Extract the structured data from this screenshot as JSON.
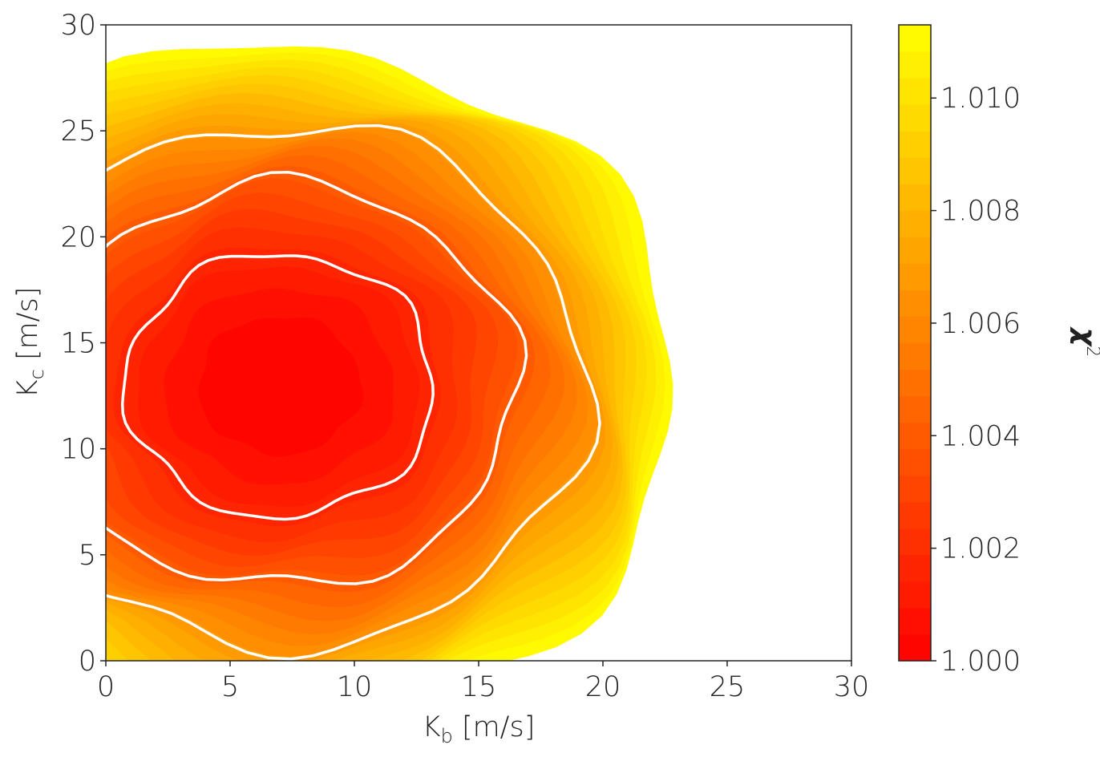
{
  "chart_data": {
    "type": "heatmap",
    "subtype": "filled-contour",
    "title": "",
    "xlabel": "K",
    "xlabel_sub": "b",
    "xlabel_unit": " [m/s]",
    "ylabel": "K",
    "ylabel_sub": "c",
    "ylabel_unit": " [m/s]",
    "xlim": [
      0,
      30
    ],
    "ylim": [
      0,
      30
    ],
    "xticks": [
      0,
      5,
      10,
      15,
      20,
      25,
      30
    ],
    "yticks": [
      0,
      5,
      10,
      15,
      20,
      25,
      30
    ],
    "minimum": {
      "x": 7,
      "y": 13,
      "value": 1.0
    },
    "colorbar": {
      "label": "χ",
      "label_sup": "2",
      "min": 1.0,
      "max": 1.0113,
      "ticks": [
        "1.000",
        "1.002",
        "1.004",
        "1.006",
        "1.008",
        "1.010"
      ],
      "tick_values": [
        1.0,
        1.002,
        1.004,
        1.006,
        1.008,
        1.01
      ],
      "colormap": "autumn",
      "color_low": "#ff0000",
      "color_high": "#ffff00"
    },
    "contour_levels": [
      1.0017,
      1.004,
      1.0067
    ],
    "contour_color": "#ffffff",
    "extent_radius_at_max": 16
  }
}
